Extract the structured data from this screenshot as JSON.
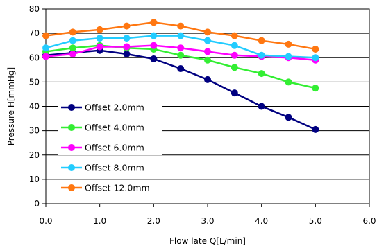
{
  "chart_data": {
    "type": "line",
    "title": "",
    "xlabel": "Flow late Q[L/min]",
    "ylabel": "Pressure H[mmHg]",
    "xlim": [
      0,
      6
    ],
    "ylim": [
      0,
      80
    ],
    "xticks": [
      0,
      1,
      2,
      3,
      4,
      5,
      6
    ],
    "xtick_labels": [
      "0.0",
      "1.0",
      "2.0",
      "3.0",
      "4.0",
      "5.0",
      "6.0"
    ],
    "yticks": [
      0,
      10,
      20,
      30,
      40,
      50,
      60,
      70,
      80
    ],
    "ytick_labels": [
      "0",
      "10",
      "20",
      "30",
      "40",
      "50",
      "60",
      "70",
      "80"
    ],
    "grid": "horizontal",
    "legend_position": "bottom-left",
    "x": [
      0,
      0.5,
      1.0,
      1.5,
      2.0,
      2.5,
      3.0,
      3.5,
      4.0,
      4.5,
      5.0
    ],
    "series": [
      {
        "name": "Offset 2.0mm",
        "color": "#000080",
        "values": [
          61,
          62,
          63,
          61.5,
          59.5,
          55.5,
          51,
          45.5,
          40,
          35.5,
          30.5
        ]
      },
      {
        "name": "Offset 4.0mm",
        "color": "#33ee33",
        "values": [
          62.5,
          64,
          65,
          64,
          63.5,
          61,
          59,
          56,
          53.5,
          50,
          47.5
        ]
      },
      {
        "name": "Offset 6.0mm",
        "color": "#ff00ff",
        "values": [
          60.5,
          61.5,
          64.5,
          64.5,
          65,
          64,
          62.5,
          61,
          60.5,
          60,
          59
        ]
      },
      {
        "name": "Offset 8.0mm",
        "color": "#22ccff",
        "values": [
          64,
          67,
          68,
          68,
          69,
          69,
          67,
          65,
          61,
          60.5,
          60
        ]
      },
      {
        "name": "Offset 12.0mm",
        "color": "#ff7711",
        "values": [
          69,
          70.5,
          71.5,
          73,
          74.5,
          73,
          70.5,
          69,
          67,
          65.5,
          63.5
        ]
      }
    ]
  }
}
